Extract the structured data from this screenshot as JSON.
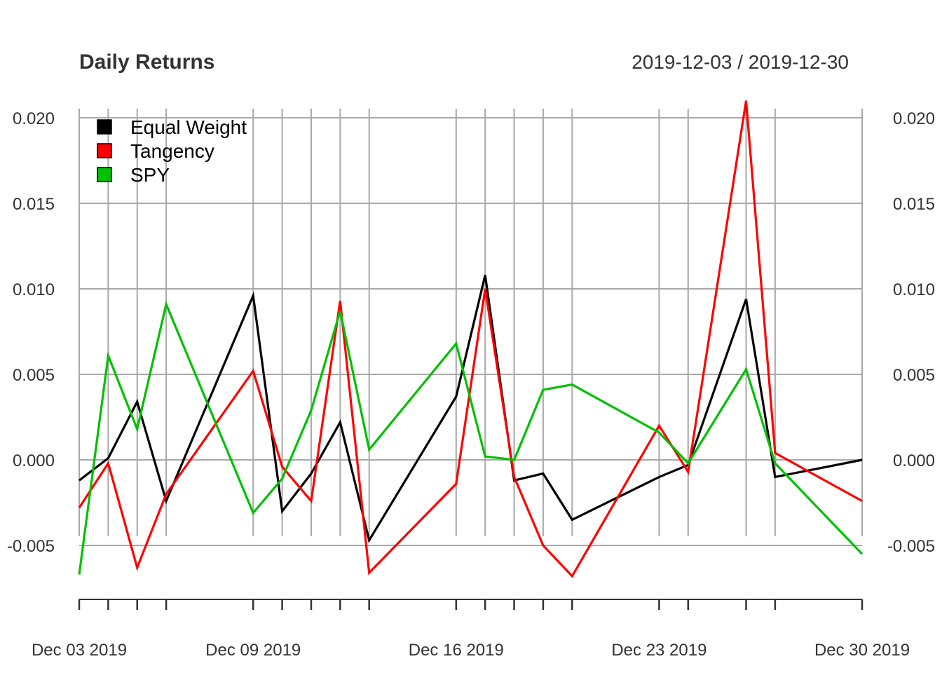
{
  "chart_data": {
    "type": "line",
    "title": "Daily Returns",
    "date_range": "2019-12-03 / 2019-12-30",
    "x": [
      "2019-12-03",
      "2019-12-04",
      "2019-12-05",
      "2019-12-06",
      "2019-12-09",
      "2019-12-10",
      "2019-12-11",
      "2019-12-12",
      "2019-12-13",
      "2019-12-16",
      "2019-12-17",
      "2019-12-18",
      "2019-12-19",
      "2019-12-20",
      "2019-12-23",
      "2019-12-24",
      "2019-12-26",
      "2019-12-27",
      "2019-12-30"
    ],
    "series": [
      {
        "name": "Equal Weight",
        "color": "#000000",
        "values": [
          -0.0012,
          0.0001,
          0.0034,
          -0.0024,
          0.0096,
          -0.003,
          -0.0008,
          0.0022,
          -0.0047,
          0.0037,
          0.0108,
          -0.0012,
          -0.0008,
          -0.0035,
          -0.001,
          -0.0003,
          0.0094,
          -0.001,
          0.0
        ]
      },
      {
        "name": "Tangency",
        "color": "#ff0000",
        "values": [
          -0.0028,
          -0.0002,
          -0.0063,
          -0.002,
          0.0052,
          -0.0004,
          -0.0024,
          0.0093,
          -0.0066,
          -0.0014,
          0.01,
          -0.001,
          -0.005,
          -0.0068,
          0.002,
          -0.0007,
          0.021,
          0.0004,
          -0.0024
        ]
      },
      {
        "name": "SPY",
        "color": "#00c000",
        "values": [
          -0.0067,
          0.0061,
          0.0018,
          0.0091,
          -0.0031,
          -0.0011,
          0.0029,
          0.0087,
          0.0006,
          0.0068,
          0.0002,
          0.0,
          0.0041,
          0.0044,
          0.0016,
          -0.0002,
          0.0053,
          -0.0002,
          -0.0055
        ]
      }
    ],
    "y_ticks": [
      "0.020",
      "0.015",
      "0.010",
      "0.005",
      "0.000",
      "-0.005"
    ],
    "x_tick_labels": [
      {
        "date": "2019-12-03",
        "label": "Dec 03 2019"
      },
      {
        "date": "2019-12-09",
        "label": "Dec 09 2019"
      },
      {
        "date": "2019-12-16",
        "label": "Dec 16 2019"
      },
      {
        "date": "2019-12-23",
        "label": "Dec 23 2019"
      },
      {
        "date": "2019-12-30",
        "label": "Dec 30 2019"
      }
    ],
    "ylim": [
      -0.0085,
      0.0215
    ],
    "grid": true,
    "legend_position": "top-left"
  }
}
